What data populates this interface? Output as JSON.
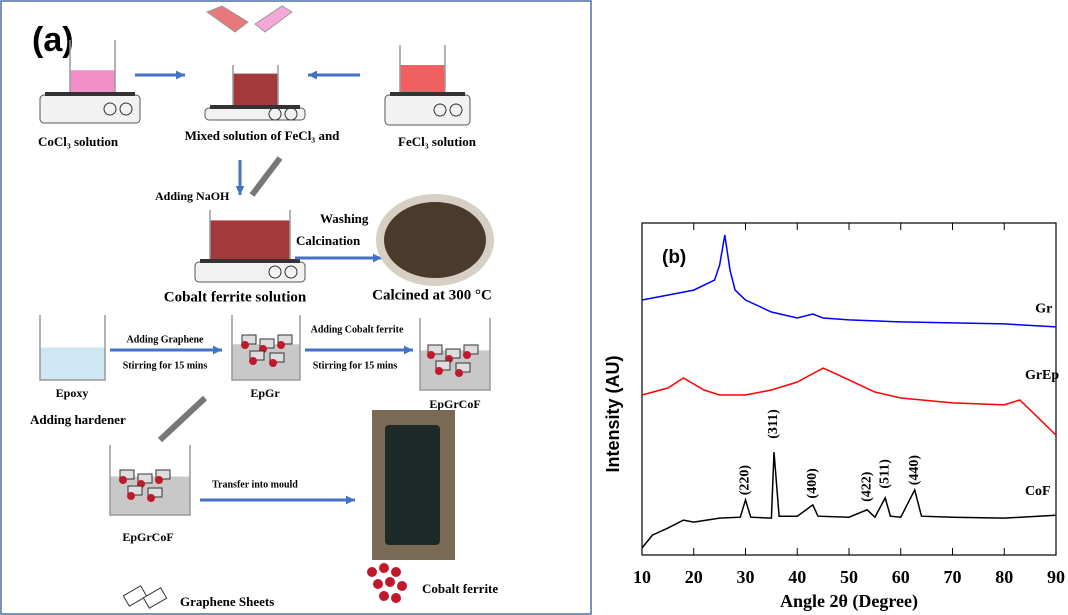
{
  "panel_a": {
    "label": "(a)",
    "cocl3_solution": "CoCl₃ solution",
    "mixed_solution": "Mixed solution of FeCl₃ and",
    "fecl3_solution": "FeCl₃ solution",
    "adding_naoh": "Adding NaOH",
    "washing": "Washing",
    "calcination": "Calcination",
    "cobalt_ferrite_solution": "Cobalt ferrite solution",
    "calcined": "Calcined at 300 °C",
    "adding_graphene": "Adding Graphene",
    "stirring_1": "Stirring for 15 mins",
    "adding_cobalt_ferrite": "Adding Cobalt ferrite",
    "stirring_2": "Stirring for 15 mins",
    "epoxy": "Epoxy",
    "epgr": "EpGr",
    "epgrcof_1": "EpGrCoF",
    "adding_hardener": "Adding hardener",
    "transfer": "Transfer into mould",
    "epgrcof_2": "EpGrCoF",
    "legend_graphene": "Graphene Sheets",
    "legend_cobalt": "Cobalt ferrite"
  },
  "chart_data": {
    "type": "line",
    "panel_label": "(b)",
    "x_label": "Angle 2θ (Degree)",
    "y_label": "Intensity (AU)",
    "xlim": [
      10,
      90
    ],
    "xticks": [
      10,
      20,
      30,
      40,
      50,
      60,
      70,
      80,
      90
    ],
    "ylim": [
      0,
      100
    ],
    "series": [
      {
        "name": "Gr",
        "color": "#0000ff",
        "x": [
          10,
          20,
          24,
          25,
          26,
          27,
          28,
          30,
          35,
          40,
          43,
          45,
          50,
          60,
          70,
          80,
          90
        ],
        "values": [
          76.8,
          79.8,
          82.8,
          87.3,
          96.4,
          85.8,
          79.8,
          76.8,
          73.2,
          71.4,
          72.6,
          71.4,
          70.8,
          70.2,
          69.9,
          69.6,
          68.7
        ]
      },
      {
        "name": "GrEp",
        "color": "#ff0000",
        "x": [
          10,
          15,
          18,
          22,
          25,
          30,
          35,
          40,
          45,
          48,
          55,
          60,
          70,
          80,
          83,
          86,
          90
        ],
        "values": [
          48.2,
          50.3,
          53.3,
          49.7,
          48.2,
          48.2,
          49.7,
          52.1,
          56.3,
          54.2,
          49.1,
          47.3,
          45.8,
          45.2,
          46.7,
          42.2,
          36.1
        ]
      },
      {
        "name": "CoF",
        "color": "#000000",
        "x": [
          10,
          12,
          15,
          18,
          20,
          25,
          29,
          30,
          31,
          35,
          35.5,
          36.5,
          40,
          43,
          44,
          50,
          53.5,
          55,
          57,
          58,
          60,
          62.7,
          64,
          70,
          80,
          90
        ],
        "values": [
          2.1,
          6.0,
          8.1,
          10.5,
          9.9,
          11.1,
          11.4,
          16.6,
          11.4,
          11.1,
          31.0,
          11.7,
          11.7,
          15.1,
          11.7,
          11.4,
          13.6,
          11.4,
          17.2,
          11.7,
          11.4,
          19.6,
          11.7,
          11.4,
          11.1,
          12.0
        ]
      }
    ],
    "annotations": [
      {
        "text": "(220)",
        "x": 30,
        "y": 18
      },
      {
        "text": "(311)",
        "x": 35.5,
        "y": 35
      },
      {
        "text": "(400)",
        "x": 43,
        "y": 17
      },
      {
        "text": "(422)",
        "x": 53.5,
        "y": 16
      },
      {
        "text": "(511)",
        "x": 57,
        "y": 20
      },
      {
        "text": "(440)",
        "x": 62.7,
        "y": 21
      }
    ],
    "series_labels": [
      {
        "text": "Gr",
        "x": 86,
        "y": 74
      },
      {
        "text": "GrEp",
        "x": 84,
        "y": 54
      },
      {
        "text": "CoF",
        "x": 84,
        "y": 19
      }
    ]
  }
}
